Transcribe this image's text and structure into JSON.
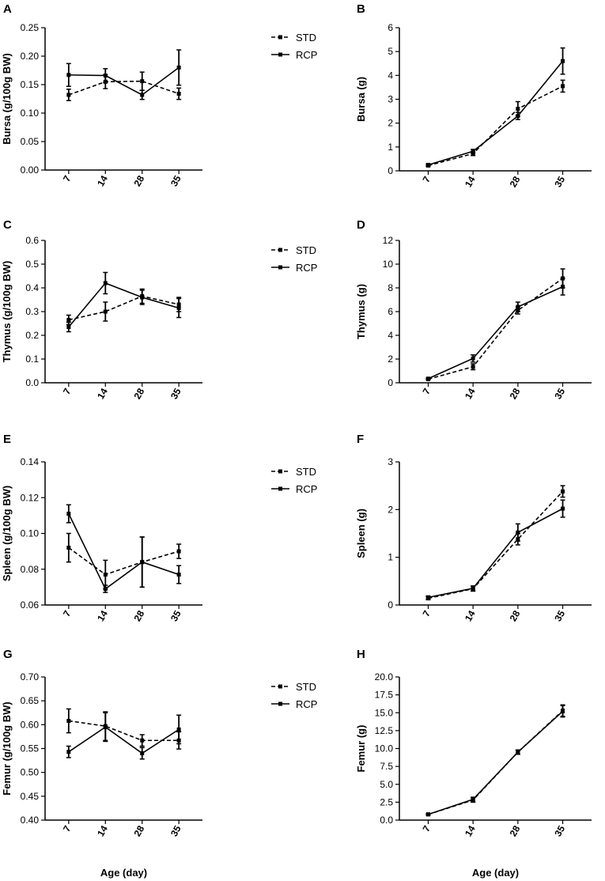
{
  "chart_data": [
    {
      "panel": "A",
      "type": "line",
      "categories": [
        "7",
        "14",
        "28",
        "35"
      ],
      "ylabel": "Bursa (g/100g BW)",
      "xlabel": "",
      "ylim": [
        0,
        0.25
      ],
      "yticks": [
        0,
        0.05,
        0.1,
        0.15,
        0.2,
        0.25
      ],
      "ytick_labels": [
        "0.00",
        "0.05",
        "0.10",
        "0.15",
        "0.20",
        "0.25"
      ],
      "legend": true,
      "series": [
        {
          "name": "STD",
          "style": "dashed",
          "values": [
            0.132,
            0.155,
            0.156,
            0.134
          ],
          "errors": [
            0.01,
            0.012,
            0.016,
            0.01
          ]
        },
        {
          "name": "RCP",
          "style": "solid",
          "values": [
            0.167,
            0.166,
            0.132,
            0.18
          ],
          "errors": [
            0.02,
            0.012,
            0.008,
            0.031
          ]
        }
      ]
    },
    {
      "panel": "B",
      "type": "line",
      "categories": [
        "7",
        "14",
        "28",
        "35"
      ],
      "ylabel": "Bursa (g)",
      "xlabel": "",
      "ylim": [
        0,
        6
      ],
      "yticks": [
        0,
        1,
        2,
        3,
        4,
        5,
        6
      ],
      "ytick_labels": [
        "0",
        "1",
        "2",
        "3",
        "4",
        "5",
        "6"
      ],
      "legend": false,
      "series": [
        {
          "name": "STD",
          "style": "dashed",
          "values": [
            0.22,
            0.72,
            2.6,
            3.55
          ],
          "errors": [
            0.04,
            0.08,
            0.3,
            0.25
          ]
        },
        {
          "name": "RCP",
          "style": "solid",
          "values": [
            0.25,
            0.82,
            2.3,
            4.6
          ],
          "errors": [
            0.04,
            0.08,
            0.15,
            0.55
          ]
        }
      ]
    },
    {
      "panel": "C",
      "type": "line",
      "categories": [
        "7",
        "14",
        "28",
        "35"
      ],
      "ylabel": "Thymus (g/100g BW)",
      "xlabel": "",
      "ylim": [
        0,
        0.6
      ],
      "yticks": [
        0,
        0.1,
        0.2,
        0.3,
        0.4,
        0.5,
        0.6
      ],
      "ytick_labels": [
        "0.0",
        "0.1",
        "0.2",
        "0.3",
        "0.4",
        "0.5",
        "0.6"
      ],
      "legend": true,
      "series": [
        {
          "name": "STD",
          "style": "dashed",
          "values": [
            0.265,
            0.3,
            0.365,
            0.33
          ],
          "errors": [
            0.02,
            0.04,
            0.03,
            0.03
          ]
        },
        {
          "name": "RCP",
          "style": "solid",
          "values": [
            0.235,
            0.42,
            0.36,
            0.315
          ],
          "errors": [
            0.02,
            0.045,
            0.03,
            0.04
          ]
        }
      ]
    },
    {
      "panel": "D",
      "type": "line",
      "categories": [
        "7",
        "14",
        "28",
        "35"
      ],
      "ylabel": "Thymus  (g)",
      "xlabel": "",
      "ylim": [
        0,
        12
      ],
      "yticks": [
        0,
        2,
        4,
        6,
        8,
        10,
        12
      ],
      "ytick_labels": [
        "0",
        "2",
        "4",
        "6",
        "8",
        "10",
        "12"
      ],
      "legend": false,
      "series": [
        {
          "name": "STD",
          "style": "dashed",
          "values": [
            0.3,
            1.35,
            6.1,
            8.8
          ],
          "errors": [
            0.05,
            0.25,
            0.3,
            0.8
          ]
        },
        {
          "name": "RCP",
          "style": "solid",
          "values": [
            0.35,
            2.05,
            6.4,
            8.1
          ],
          "errors": [
            0.05,
            0.3,
            0.4,
            0.7
          ]
        }
      ]
    },
    {
      "panel": "E",
      "type": "line",
      "categories": [
        "7",
        "14",
        "28",
        "35"
      ],
      "ylabel": "Spleen (g/100g BW)",
      "xlabel": "",
      "ylim": [
        0.06,
        0.14
      ],
      "yticks": [
        0.06,
        0.08,
        0.1,
        0.12,
        0.14
      ],
      "ytick_labels": [
        "0.06",
        "0.08",
        "0.10",
        "0.12",
        "0.14"
      ],
      "legend": true,
      "series": [
        {
          "name": "STD",
          "style": "dashed",
          "values": [
            0.092,
            0.077,
            0.084,
            0.09
          ],
          "errors": [
            0.008,
            0.008,
            0.014,
            0.004
          ]
        },
        {
          "name": "RCP",
          "style": "solid",
          "values": [
            0.111,
            0.069,
            0.084,
            0.077
          ],
          "errors": [
            0.005,
            0.002,
            0.014,
            0.005
          ]
        }
      ]
    },
    {
      "panel": "F",
      "type": "line",
      "categories": [
        "7",
        "14",
        "28",
        "35"
      ],
      "ylabel": "Spleen  (g)",
      "xlabel": "",
      "ylim": [
        0,
        3
      ],
      "yticks": [
        0,
        1,
        2,
        3
      ],
      "ytick_labels": [
        "0",
        "1",
        "2",
        "3"
      ],
      "legend": false,
      "series": [
        {
          "name": "STD",
          "style": "dashed",
          "values": [
            0.14,
            0.34,
            1.38,
            2.38
          ],
          "errors": [
            0.03,
            0.05,
            0.12,
            0.12
          ]
        },
        {
          "name": "RCP",
          "style": "solid",
          "values": [
            0.16,
            0.35,
            1.52,
            2.02
          ],
          "errors": [
            0.03,
            0.05,
            0.18,
            0.18
          ]
        }
      ]
    },
    {
      "panel": "G",
      "type": "line",
      "categories": [
        "7",
        "14",
        "28",
        "35"
      ],
      "ylabel": "Femur (g/100g BW)",
      "xlabel": "Age (day)",
      "ylim": [
        0.4,
        0.7
      ],
      "yticks": [
        0.4,
        0.45,
        0.5,
        0.55,
        0.6,
        0.65,
        0.7
      ],
      "ytick_labels": [
        "0.40",
        "0.45",
        "0.50",
        "0.55",
        "0.60",
        "0.65",
        "0.70"
      ],
      "legend": true,
      "series": [
        {
          "name": "STD",
          "style": "dashed",
          "values": [
            0.608,
            0.597,
            0.567,
            0.567
          ],
          "errors": [
            0.025,
            0.03,
            0.012,
            0.018
          ]
        },
        {
          "name": "RCP",
          "style": "solid",
          "values": [
            0.543,
            0.595,
            0.54,
            0.59
          ],
          "errors": [
            0.012,
            0.03,
            0.012,
            0.03
          ]
        }
      ]
    },
    {
      "panel": "H",
      "type": "line",
      "categories": [
        "7",
        "14",
        "28",
        "35"
      ],
      "ylabel": "Femur (g)",
      "xlabel": "Age (day)",
      "ylim": [
        0,
        20
      ],
      "yticks": [
        0,
        2.5,
        5,
        7.5,
        10,
        12.5,
        15,
        17.5,
        20
      ],
      "ytick_labels": [
        "0.0",
        "2.5",
        "5.0",
        "7.5",
        "10.0",
        "12.5",
        "15.0",
        "17.5",
        "20.0"
      ],
      "legend": false,
      "series": [
        {
          "name": "STD",
          "style": "dashed",
          "values": [
            0.8,
            2.8,
            9.5,
            15.3
          ],
          "errors": [
            0.1,
            0.3,
            0.3,
            0.8
          ]
        },
        {
          "name": "RCP",
          "style": "solid",
          "values": [
            0.8,
            2.9,
            9.5,
            15.2
          ],
          "errors": [
            0.1,
            0.3,
            0.3,
            0.8
          ]
        }
      ]
    }
  ]
}
